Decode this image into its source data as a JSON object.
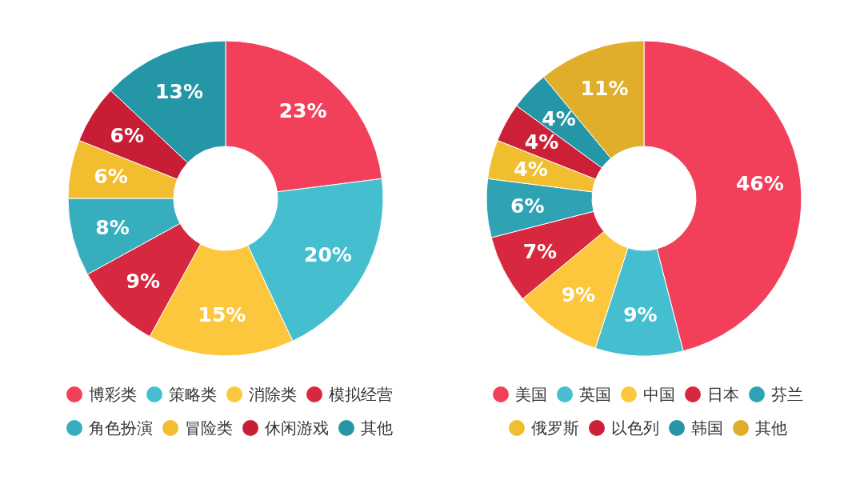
{
  "chart_data": [
    {
      "type": "donut",
      "categories": [
        "博彩类",
        "策略类",
        "消除类",
        "模拟经营",
        "角色扮演",
        "冒险类",
        "休闲游戏",
        "其他"
      ],
      "values": [
        23,
        20,
        15,
        9,
        8,
        6,
        6,
        13
      ],
      "value_labels": [
        "23%",
        "20%",
        "15%",
        "9%",
        "8%",
        "6%",
        "6%",
        "13%"
      ],
      "colors": [
        "#f2405a",
        "#45bfd0",
        "#fcc73c",
        "#d8283f",
        "#36aebd",
        "#f2bd2e",
        "#c81e35",
        "#2596a5"
      ],
      "legend": "bottom"
    },
    {
      "type": "donut",
      "categories": [
        "美国",
        "英国",
        "中国",
        "日本",
        "芬兰",
        "俄罗斯",
        "以色列",
        "韩国",
        "其他"
      ],
      "values": [
        46,
        9,
        9,
        7,
        6,
        4,
        4,
        4,
        11
      ],
      "value_labels": [
        "46%",
        "9%",
        "9%",
        "7%",
        "6%",
        "4%",
        "4%",
        "4%",
        "11%"
      ],
      "colors": [
        "#f2405a",
        "#45bfd0",
        "#fcc73c",
        "#d8283f",
        "#2fa3b3",
        "#f0be2e",
        "#cc1f38",
        "#2596a5",
        "#e0ae2a"
      ],
      "legend": "bottom"
    }
  ]
}
